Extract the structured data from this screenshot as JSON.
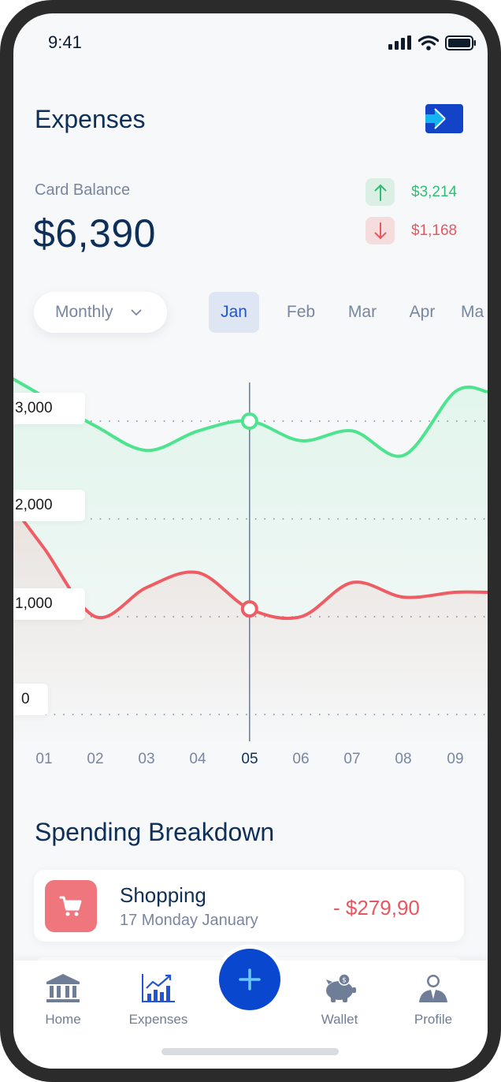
{
  "status_bar": {
    "time": "9:41"
  },
  "header": {
    "title": "Expenses",
    "logout_icon": "logout-icon"
  },
  "balance": {
    "label": "Card Balance",
    "value": "$6,390",
    "income": {
      "value": "$3,214",
      "icon": "arrow-up-icon",
      "color": "#2fbf71"
    },
    "expense": {
      "value": "$1,168",
      "icon": "arrow-down-icon",
      "color": "#e8575f"
    }
  },
  "period_selector": {
    "selected": "Monthly",
    "icon": "chevron-down-icon"
  },
  "months": [
    {
      "label": "Jan",
      "active": true
    },
    {
      "label": "Feb",
      "active": false
    },
    {
      "label": "Mar",
      "active": false
    },
    {
      "label": "Apr",
      "active": false
    },
    {
      "label": "Ma",
      "active": false
    }
  ],
  "chart_data": {
    "type": "line",
    "x": [
      "01",
      "02",
      "03",
      "04",
      "05",
      "06",
      "07",
      "08",
      "09"
    ],
    "y_ticks": [
      "0",
      "1,000",
      "2,000",
      "3,000"
    ],
    "ylim": [
      0,
      3000
    ],
    "selected_x": "05",
    "grid": "dotted horizontal",
    "series": [
      {
        "color": "#4ee38e",
        "values": [
          3250,
          2950,
          2700,
          2900,
          3000,
          2800,
          2900,
          2650,
          3300
        ]
      },
      {
        "color": "#ee5d64",
        "values": [
          1700,
          1000,
          1300,
          1450,
          1080,
          1000,
          1350,
          1200,
          1250
        ]
      }
    ]
  },
  "spending": {
    "title": "Spending Breakdown",
    "items": [
      {
        "title": "Shopping",
        "date": "17 Monday January",
        "amount": "- $279,90",
        "icon": "shopping-cart-icon"
      }
    ]
  },
  "tabbar": {
    "items": [
      {
        "label": "Home",
        "icon": "bank-icon",
        "active": false
      },
      {
        "label": "Expenses",
        "icon": "chart-icon",
        "active": true
      },
      {
        "label": "Wallet",
        "icon": "piggy-bank-icon",
        "active": false
      },
      {
        "label": "Profile",
        "icon": "user-icon",
        "active": false
      }
    ],
    "add_icon": "plus-icon"
  },
  "colors": {
    "primary": "#0a47cf",
    "title": "#0e2f57",
    "muted": "#7886a0"
  }
}
